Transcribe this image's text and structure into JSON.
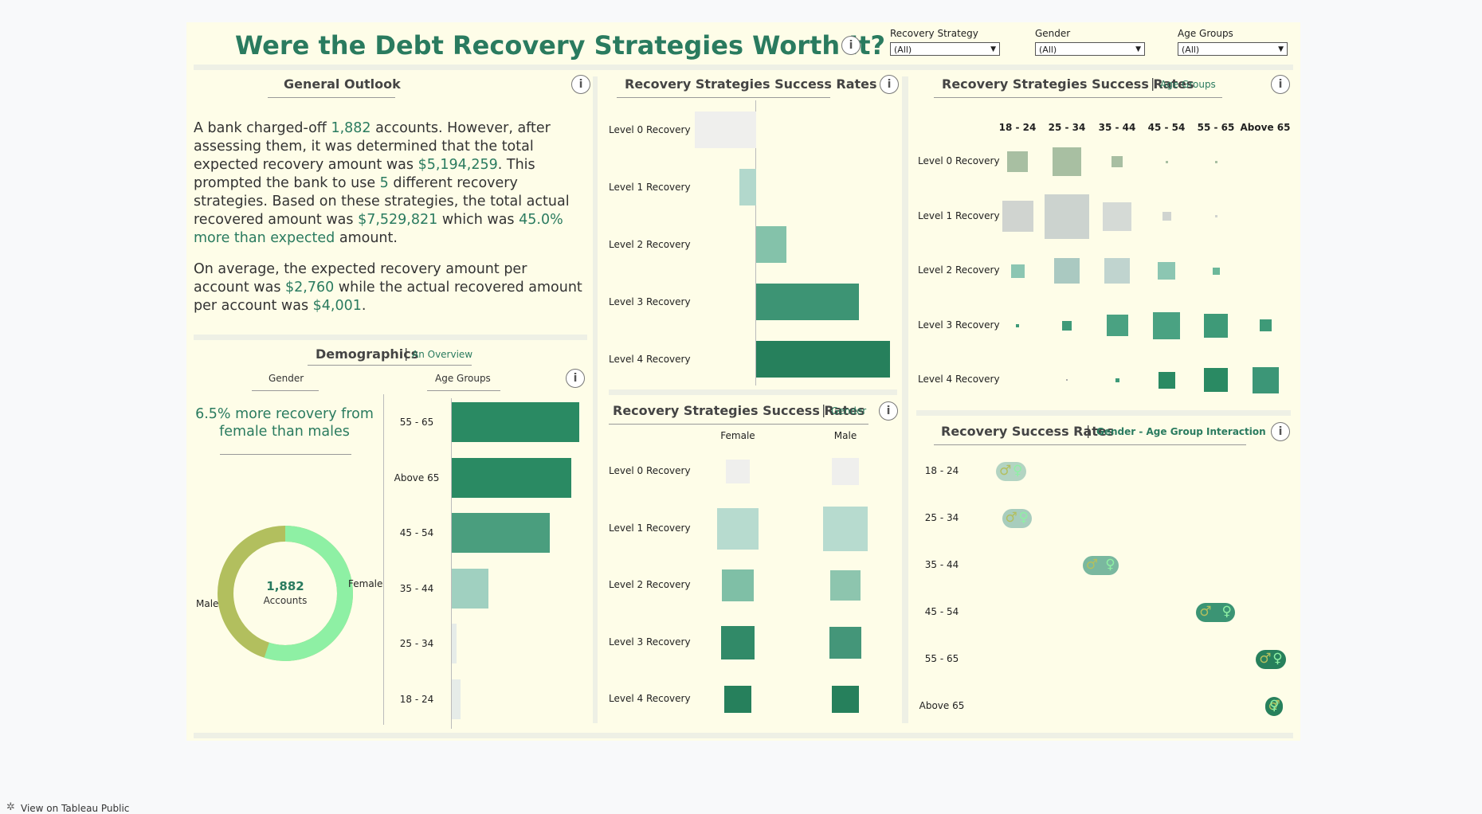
{
  "dashboard": {
    "title": "Were the Debt Recovery Strategies Worth It?",
    "info_symbol": "i"
  },
  "filters": [
    {
      "label": "Recovery Strategy",
      "value": "(All)"
    },
    {
      "label": "Gender",
      "value": "(All)"
    },
    {
      "label": "Age Groups",
      "value": "(All)"
    }
  ],
  "general_outlook": {
    "title": "General Outlook",
    "p1": [
      "A bank charged-off ",
      "1,882",
      " accounts. However, after assessing them, it was determined that the total expected recovery amount was ",
      "$5,194,259",
      ". This prompted the bank to use ",
      "5",
      " different recovery strategies. Based on these strategies, the total actual recovered amount was ",
      "$7,529,821",
      " which was ",
      "45.0% more than expected",
      " amount."
    ],
    "p2": [
      "On average, the expected recovery amount per account was ",
      "$2,760",
      " while the actual recovered amount per account was ",
      "$4,001",
      "."
    ]
  },
  "demographics": {
    "title": "Demographics",
    "subtitle": "An Overview",
    "gender_header": "Gender",
    "age_header": "Age Groups",
    "gender_note": "6.5% more recovery from female than males",
    "donut_value": "1,882",
    "donut_label": "Accounts",
    "donut_male_label": "Male",
    "donut_female_label": "Female",
    "donut_female_share": 0.55,
    "age_bars": [
      {
        "label": "55 - 65",
        "value": 1.0,
        "color": "#2a8a63"
      },
      {
        "label": "Above 65",
        "value": 0.94,
        "color": "#2a8a63"
      },
      {
        "label": "45 - 54",
        "value": 0.77,
        "color": "#4a9e7e"
      },
      {
        "label": "35 - 44",
        "value": 0.29,
        "color": "#a0d0c0"
      },
      {
        "label": "25 - 34",
        "value": 0.04,
        "color": "#e6ece8"
      },
      {
        "label": "18 - 24",
        "value": 0.07,
        "color": "#e6ece8"
      }
    ]
  },
  "strategy_rates": {
    "title": "Recovery Strategies Success Rates",
    "chart_data": {
      "type": "bar",
      "categories": [
        "Level 0 Recovery",
        "Level 1 Recovery",
        "Level 2 Recovery",
        "Level 3 Recovery",
        "Level 4 Recovery"
      ],
      "values": [
        -0.55,
        -0.15,
        0.27,
        0.92,
        1.2
      ],
      "colors": [
        "#efefed",
        "#b2d8cc",
        "#84c2aa",
        "#3d9474",
        "#26805c"
      ]
    }
  },
  "age_rates": {
    "title": "Recovery Strategies Success Rates",
    "subtitle": "Age Groups",
    "columns": [
      "18 - 24",
      "25 - 34",
      "35 - 44",
      "45 - 54",
      "55 - 65",
      "Above 65"
    ],
    "rows": [
      "Level 0 Recovery",
      "Level 1 Recovery",
      "Level 2 Recovery",
      "Level 3 Recovery",
      "Level 4 Recovery"
    ],
    "sizes": [
      [
        26,
        36,
        14,
        3,
        3,
        0
      ],
      [
        39,
        56,
        36,
        11,
        3,
        0
      ],
      [
        17,
        32,
        32,
        22,
        9,
        0
      ],
      [
        4,
        12,
        27,
        34,
        30,
        15
      ],
      [
        0,
        2,
        5,
        21,
        30,
        33
      ]
    ],
    "colors": [
      [
        "#a8bfa2",
        "#a8bfa2",
        "#a8bfa2",
        "#a8bfa2",
        "#a8bfa2",
        "#a8bfa2"
      ],
      [
        "#d0d4d0",
        "#ccd3cf",
        "#d5dad6",
        "#d0d4d0",
        "#d0d4d0",
        "#d0d4d0"
      ],
      [
        "#8cc6b2",
        "#aac9c1",
        "#c0d4cf",
        "#8cc6b2",
        "#6cb89a",
        "#6cb89a"
      ],
      [
        "#3e9a78",
        "#3e9a78",
        "#4aa282",
        "#4aa282",
        "#3e9a78",
        "#3e9a78"
      ],
      [
        "#aaa",
        "#aaa",
        "#3e9a78",
        "#2a8a63",
        "#2a8a63",
        "#3c9677"
      ]
    ]
  },
  "gender_rates": {
    "title": "Recovery Strategies Success Rates",
    "subtitle": "Gender",
    "columns": [
      "Female",
      "Male"
    ],
    "rows": [
      "Level 0 Recovery",
      "Level 1 Recovery",
      "Level 2 Recovery",
      "Level 3 Recovery",
      "Level 4 Recovery"
    ],
    "sizes": [
      [
        30,
        34
      ],
      [
        52,
        56
      ],
      [
        40,
        38
      ],
      [
        42,
        40
      ],
      [
        34,
        34
      ]
    ],
    "colors": [
      [
        "#efefed",
        "#efefed"
      ],
      [
        "#b7dbcf",
        "#b7dbcf"
      ],
      [
        "#7fbfa6",
        "#8dc5ae"
      ],
      [
        "#318a68",
        "#449679"
      ],
      [
        "#26805c",
        "#26805c"
      ]
    ]
  },
  "interaction": {
    "title": "Recovery Success Rates",
    "subtitle": "Gender - Age Group Interaction",
    "male_symbol": "♂",
    "female_symbol": "♀",
    "rows": [
      {
        "label": "18 - 24",
        "start": 0.08,
        "end": 0.18,
        "color": "#b3d4c2"
      },
      {
        "label": "25 - 34",
        "start": 0.1,
        "end": 0.2,
        "color": "#a8cdbd"
      },
      {
        "label": "35 - 44",
        "start": 0.37,
        "end": 0.49,
        "color": "#7ab89f"
      },
      {
        "label": "45 - 54",
        "start": 0.75,
        "end": 0.88,
        "color": "#3b9474"
      },
      {
        "label": "55 - 65",
        "start": 0.95,
        "end": 1.05,
        "color": "#27805c"
      },
      {
        "label": "Above 65",
        "start": 0.98,
        "end": 1.0,
        "color": "#27805c"
      }
    ]
  },
  "footer": {
    "link": "View on Tableau Public"
  }
}
